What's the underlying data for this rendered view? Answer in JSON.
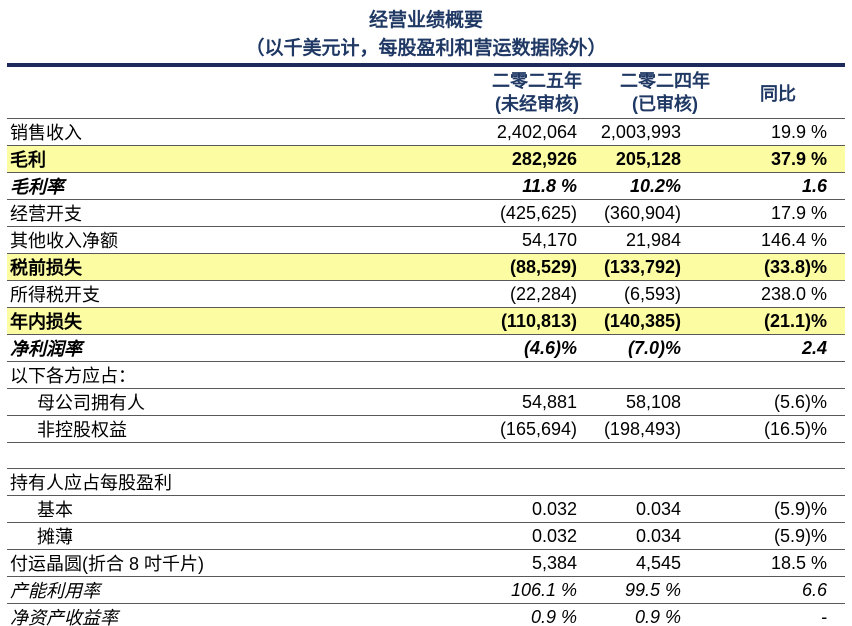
{
  "page": {
    "title": "经营业绩概要",
    "subtitle": "（以千美元计，每股盈利和营运数据除外）"
  },
  "colors": {
    "navy_text": "#1f3864",
    "navy_border": "#1e2a5b",
    "row_line": "#595959",
    "highlight_yellow": "#fcfca3"
  },
  "table": {
    "header": {
      "col_2025_line1": "二零二五年",
      "col_2025_line2": "(未经审核)",
      "col_2024_line1": "二零二四年",
      "col_2024_line2": "(已审核)",
      "col_yoy": "同比"
    },
    "rows": [
      {
        "label": "销售收入",
        "v2025": "2,402,064",
        "v2024": "2,003,993",
        "yoy": "19.9 %",
        "highlight": false,
        "emphasis": "none",
        "indent": false
      },
      {
        "label": "毛利",
        "v2025": "282,926",
        "v2024": "205,128",
        "yoy": "37.9 %",
        "highlight": true,
        "emphasis": "bold",
        "indent": false
      },
      {
        "label": "毛利率",
        "v2025": "11.8 %",
        "v2024": "10.2%",
        "yoy": "1.6",
        "highlight": false,
        "emphasis": "bold-italic",
        "indent": false
      },
      {
        "label": "经营开支",
        "v2025": "(425,625)",
        "v2024": "(360,904)",
        "yoy": "17.9 %",
        "highlight": false,
        "emphasis": "none",
        "indent": false
      },
      {
        "label": "其他收入净额",
        "v2025": "54,170",
        "v2024": "21,984",
        "yoy": "146.4 %",
        "highlight": false,
        "emphasis": "none",
        "indent": false
      },
      {
        "label": "税前损失",
        "v2025": "(88,529)",
        "v2024": "(133,792)",
        "yoy": "(33.8)%",
        "highlight": true,
        "emphasis": "bold",
        "indent": false
      },
      {
        "label": "所得税开支",
        "v2025": "(22,284)",
        "v2024": "(6,593)",
        "yoy": "238.0 %",
        "highlight": false,
        "emphasis": "none",
        "indent": false
      },
      {
        "label": "年内损失",
        "v2025": "(110,813)",
        "v2024": "(140,385)",
        "yoy": "(21.1)%",
        "highlight": true,
        "emphasis": "bold",
        "indent": false
      },
      {
        "label": "净利润率",
        "v2025": "(4.6)%",
        "v2024": "(7.0)%",
        "yoy": "2.4",
        "highlight": false,
        "emphasis": "bold-italic",
        "indent": false
      },
      {
        "label": "以下各方应占：",
        "v2025": "",
        "v2024": "",
        "yoy": "",
        "highlight": false,
        "emphasis": "none",
        "indent": false
      },
      {
        "label": "母公司拥有人",
        "v2025": "54,881",
        "v2024": "58,108",
        "yoy": "(5.6)%",
        "highlight": false,
        "emphasis": "none",
        "indent": true
      },
      {
        "label": "非控股权益",
        "v2025": "(165,694)",
        "v2024": "(198,493)",
        "yoy": "(16.5)%",
        "highlight": false,
        "emphasis": "none",
        "indent": true
      },
      {
        "label": "",
        "v2025": "",
        "v2024": "",
        "yoy": "",
        "highlight": false,
        "emphasis": "none",
        "indent": false
      },
      {
        "label": "持有人应占每股盈利",
        "v2025": "",
        "v2024": "",
        "yoy": "",
        "highlight": false,
        "emphasis": "none",
        "indent": false
      },
      {
        "label": "基本",
        "v2025": "0.032",
        "v2024": "0.034",
        "yoy": "(5.9)%",
        "highlight": false,
        "emphasis": "none",
        "indent": true
      },
      {
        "label": "摊薄",
        "v2025": "0.032",
        "v2024": "0.034",
        "yoy": "(5.9)%",
        "highlight": false,
        "emphasis": "none",
        "indent": true
      },
      {
        "label": "付运晶圆(折合 8 吋千片)",
        "v2025": "5,384",
        "v2024": "4,545",
        "yoy": "18.5 %",
        "highlight": false,
        "emphasis": "none",
        "indent": false
      },
      {
        "label": "产能利用率",
        "v2025": "106.1 %",
        "v2024": "99.5 %",
        "yoy": "6.6",
        "highlight": false,
        "emphasis": "italic",
        "indent": false
      },
      {
        "label": "净资产收益率",
        "v2025": "0.9 %",
        "v2024": "0.9 %",
        "yoy": "-",
        "highlight": false,
        "emphasis": "italic",
        "indent": false
      }
    ]
  }
}
